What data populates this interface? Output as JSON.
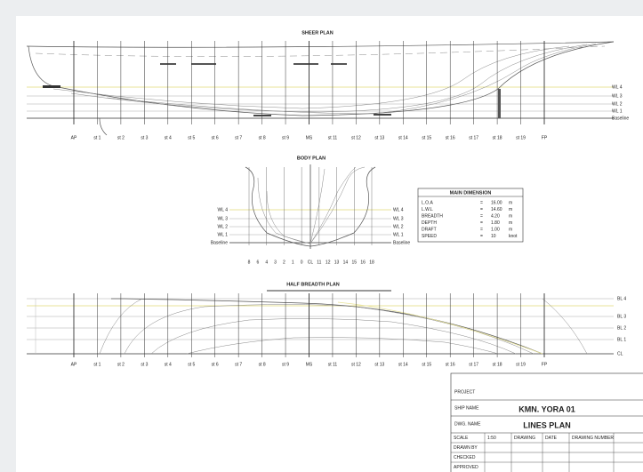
{
  "stations": [
    "AP",
    "st 1",
    "st 2",
    "st 3",
    "st 4",
    "st 5",
    "st 6",
    "st 7",
    "st 8",
    "st 9",
    "MS",
    "st 11",
    "st 12",
    "st 13",
    "st 14",
    "st 15",
    "st 16",
    "st 17",
    "st 18",
    "st 19",
    "FP"
  ],
  "sheer_plan": {
    "title": "SHEER PLAN",
    "baseline": "Baseline",
    "waterlines": [
      "WL 4",
      "WL 3",
      "WL 2",
      "WL 1"
    ]
  },
  "body_plan": {
    "title": "BODY PLAN",
    "baseline": "Baseline",
    "stations": [
      "8",
      "6",
      "4",
      "3",
      "2",
      "1",
      "0",
      "CL",
      "11",
      "12",
      "13",
      "14",
      "15",
      "16",
      "18"
    ],
    "waterlines": [
      "WL 4",
      "WL 3",
      "WL 2",
      "WL 1"
    ]
  },
  "half_breadth_plan": {
    "title": "HALF BREADTH PLAN",
    "buttocks": [
      "BL 4",
      "BL 3",
      "BL 2",
      "BL 1",
      "CL"
    ]
  },
  "principal_dimensions": {
    "title": "MAIN DIMENSION",
    "rows": [
      [
        "L.O.A",
        "=",
        "16.00",
        "m"
      ],
      [
        "L.W.L",
        "=",
        "14.60",
        "m"
      ],
      [
        "BREADTH",
        "=",
        "4.20",
        "m"
      ],
      [
        "DEPTH",
        "=",
        "1.80",
        "m"
      ],
      [
        "DRAFT",
        "=",
        "1.00",
        "m"
      ],
      [
        "SPEED",
        "=",
        "10",
        "knot"
      ]
    ]
  },
  "title_block": {
    "project_label": "PROJECT",
    "ship_label": "SHIP NAME",
    "ship_name": "KMN. YORA 01",
    "drawing_label": "DWG. NAME",
    "drawing_name": "LINES PLAN",
    "grid": [
      [
        "SCALE",
        "1:50",
        "DRAWING",
        "DATE",
        "DRAWING NUMBER"
      ],
      [
        "DRAWN BY",
        "",
        "",
        "",
        ""
      ],
      [
        "CHECKED",
        "",
        "",
        "",
        ""
      ],
      [
        "APPROVED",
        "",
        "",
        "",
        ""
      ]
    ]
  }
}
